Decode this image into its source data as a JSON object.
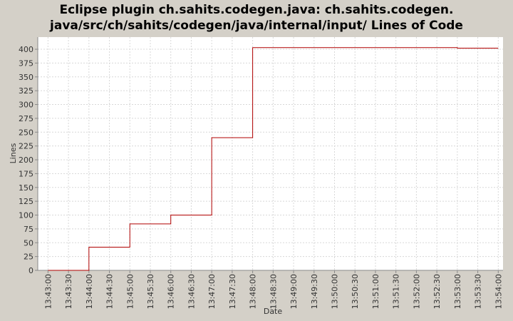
{
  "chart_data": {
    "type": "step",
    "title": [
      "Eclipse plugin ch.sahits.codegen.java: ch.sahits.codegen.",
      "java/src/ch/sahits/codegen/java/internal/input/ Lines of Code"
    ],
    "x_label": "Date",
    "y_label": "Lines",
    "x": [
      "13:43:00",
      "13:44:00",
      "13:45:00",
      "13:46:00",
      "13:47:00",
      "13:48:00",
      "13:53:00",
      "13:54:00"
    ],
    "series": [
      {
        "color": "#b00000",
        "values": [
          0,
          42,
          84,
          100,
          240,
          403,
          402,
          402
        ]
      }
    ],
    "xlim": [
      "13:42:45",
      "13:54:07"
    ],
    "xticks": [
      "13:43:00",
      "13:43:30",
      "13:44:00",
      "13:44:30",
      "13:45:00",
      "13:45:30",
      "13:46:00",
      "13:46:30",
      "13:47:00",
      "13:47:30",
      "13:48:00",
      "13:48:30",
      "13:49:00",
      "13:49:30",
      "13:50:00",
      "13:50:30",
      "13:51:00",
      "13:51:30",
      "13:52:00",
      "13:52:30",
      "13:53:00",
      "13:53:30",
      "13:54:00"
    ],
    "ylim": [
      0,
      422
    ],
    "yticks": [
      0,
      25,
      50,
      75,
      100,
      125,
      150,
      175,
      200,
      225,
      250,
      275,
      300,
      325,
      350,
      375,
      400
    ],
    "grid": true
  }
}
